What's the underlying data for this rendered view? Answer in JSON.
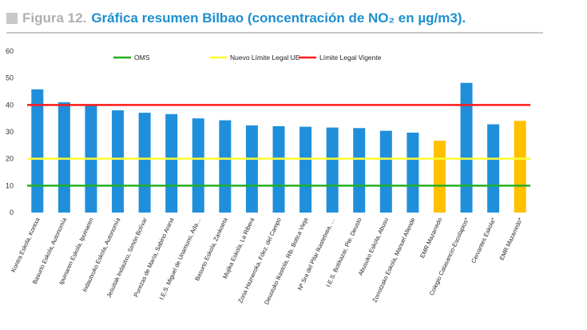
{
  "figure": {
    "label": "Figura 12.",
    "title": "Gráfica resumen Bilbao (concentración de NO₂ en µg/m3)."
  },
  "colors": {
    "bar_blue": "#1f8fdb",
    "bar_orange": "#ffc000",
    "oms_line": "#22b022",
    "ue_line": "#ffff33",
    "vigente_line": "#ff1a1a"
  },
  "chart_data": {
    "type": "bar",
    "title": "",
    "xlabel": "",
    "ylabel": "",
    "ylim": [
      0,
      60
    ],
    "yticks": [
      0,
      10,
      20,
      30,
      40,
      50,
      60
    ],
    "grid": false,
    "legend_placement": "top",
    "categories": [
      "Kontra Eskola, Kontxa",
      "Basurto Eskola, Autonomía",
      "Ipuinaren Eskola, Ipuinaren",
      "Indautxuko Eskola, Autonomía",
      "Jesuitak Indautxu, Simón Bolívar",
      "Purezas de María, Sabino Arana",
      "I.E.S. Miguel de Unamuno, Ada…",
      "Basurto Eskola, Zankoeta",
      "Mujika Eskola, La Ribera",
      "Zona Hazneroka, Fdez. del Campo",
      "Deustuko Ikastola, Rib. Botica Vieja",
      "Nª Sra del Pilar Ikastetxea, …",
      "I.E.S. Botikazar, Pte. Deusto",
      "Abusuko Eskola, Abusu",
      "Zorrotzako Eskola, Manuel Allende",
      "EMR Mazarredo",
      "Colegio Calasancio-Escolapios*",
      "Cervantes Eskola*",
      "EMR Mazarredo*"
    ],
    "values": [
      45.8,
      41.0,
      40.0,
      38.0,
      37.1,
      36.6,
      35.0,
      34.3,
      32.4,
      32.1,
      31.9,
      31.6,
      31.4,
      30.4,
      29.7,
      26.7,
      48.2,
      32.8,
      34.1
    ],
    "bar_colors": [
      "blue",
      "blue",
      "blue",
      "blue",
      "blue",
      "blue",
      "blue",
      "blue",
      "blue",
      "blue",
      "blue",
      "blue",
      "blue",
      "blue",
      "blue",
      "orange",
      "blue",
      "blue",
      "orange"
    ],
    "reference_lines": [
      {
        "name": "OMS",
        "value": 10,
        "color": "#22b022"
      },
      {
        "name": "Nuevo Límite Legal UE",
        "value": 20,
        "color": "#ffff33"
      },
      {
        "name": "Límite Legal Vigente",
        "value": 40,
        "color": "#ff1a1a"
      }
    ]
  }
}
